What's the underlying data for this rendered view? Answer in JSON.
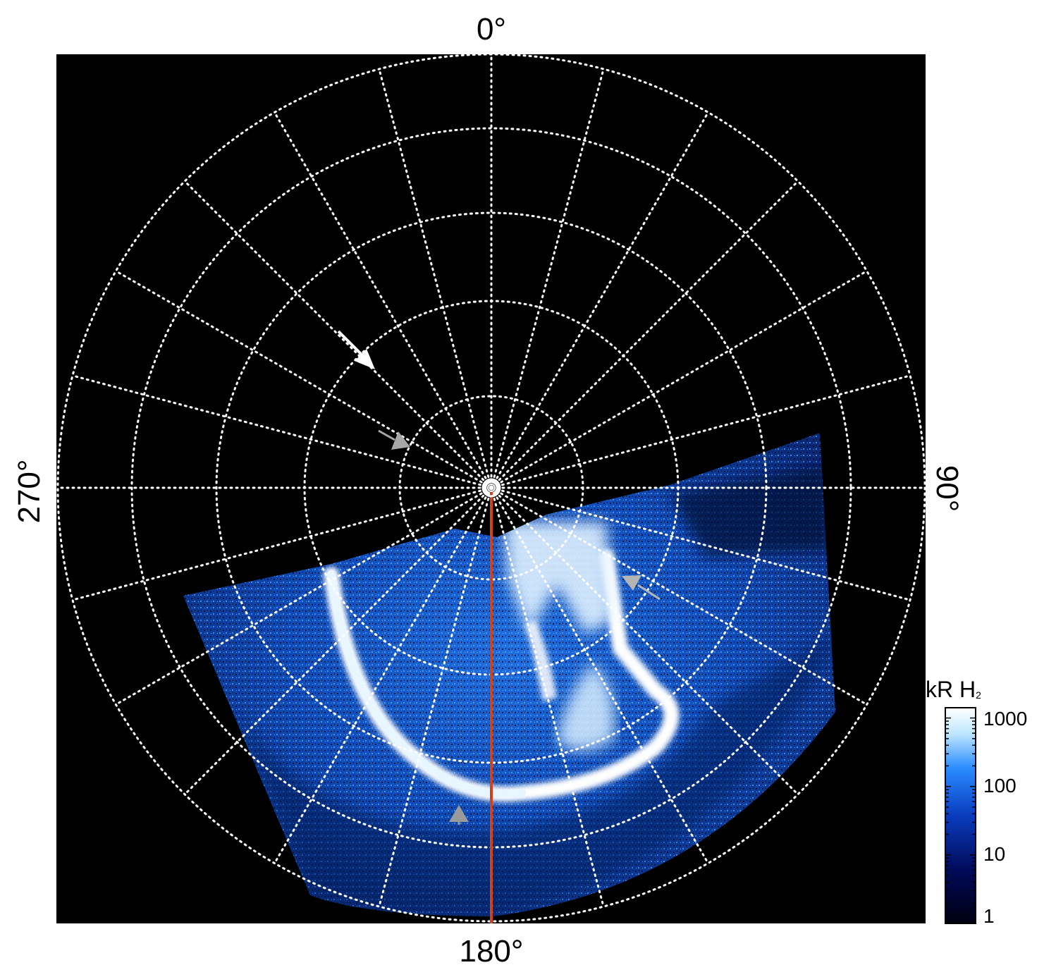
{
  "figure": {
    "axis_labels": {
      "top": "0°",
      "right": "90°",
      "bottom": "180°",
      "left": "270°"
    },
    "colorbar": {
      "title_main": "kR H",
      "title_sub": "2",
      "ticks": [
        "1000",
        "100",
        "10",
        "1"
      ],
      "colors": [
        "#000010",
        "#000a5a",
        "#0a3cbe",
        "#2a8cff",
        "#bfe6ff",
        "#ffffff"
      ],
      "scale": "log"
    },
    "map": {
      "background": "#000000",
      "grid_color": "#ffffff",
      "meridian_color": "#d0421b",
      "arrows": [
        {
          "color": "#ffffff",
          "name": "white-arrow"
        },
        {
          "color": "#a8a8a8",
          "name": "gray-arrow-upper"
        },
        {
          "color": "#b4b4b4",
          "name": "gray-arrow-right"
        },
        {
          "color": "#9a9a9a",
          "name": "gray-arrow-bottom"
        }
      ]
    }
  }
}
